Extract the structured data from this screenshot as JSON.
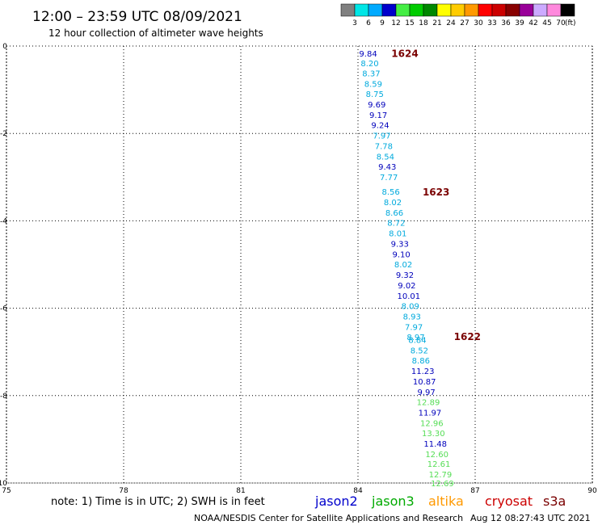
{
  "title": "12:00 – 23:59 UTC 08/09/2021",
  "subtitle": "12 hour collection of altimeter wave heights",
  "note": "note: 1) Time is in UTC; 2) SWH is in feet",
  "footer_left": "NOAA/NESDIS Center for Satellite Applications and Research",
  "footer_right": "Aug 12 08:27:43 UTC 2021",
  "satellites": [
    {
      "name": "jason2",
      "color": "#0000cc"
    },
    {
      "name": "jason3",
      "color": "#00aa00"
    },
    {
      "name": "altika",
      "color": "#ff9900"
    },
    {
      "name": "cryosat",
      "color": "#cc0000"
    },
    {
      "name": "s3a",
      "color": "#7a0000"
    }
  ],
  "color_scale": {
    "labels": [
      "3",
      "6",
      "9",
      "12",
      "15",
      "18",
      "21",
      "24",
      "27",
      "30",
      "33",
      "36",
      "39",
      "42",
      "45",
      "70"
    ],
    "unit": "(ft)",
    "colors": [
      "#808080",
      "#00e6e6",
      "#00aaff",
      "#0000cc",
      "#44ee44",
      "#00cc00",
      "#008800",
      "#ffff00",
      "#ffcc00",
      "#ff9900",
      "#ff0000",
      "#cc0000",
      "#880000",
      "#990099",
      "#ccaaff",
      "#ff88dd",
      "#000000"
    ]
  },
  "chart_data": {
    "type": "scatter",
    "xlim": [
      75,
      90
    ],
    "ylim": [
      -10,
      0
    ],
    "x_ticks": [
      "75",
      "78",
      "81",
      "84",
      "87",
      "90"
    ],
    "y_ticks": [
      "0",
      "-2",
      "-4",
      "-6",
      "-8",
      "-10"
    ],
    "grid": true,
    "track_colors": {
      "cyan": "#00aadd",
      "blue": "#0000bb",
      "green": "#55dd55"
    },
    "time_labels": [
      {
        "text": "1624",
        "lon": 85.2,
        "lat": -0.18
      },
      {
        "text": "1623",
        "lon": 86.0,
        "lat": -3.35
      },
      {
        "text": "1622",
        "lon": 86.8,
        "lat": -6.65
      }
    ],
    "points": [
      {
        "value": "9.84",
        "lon": 84.26,
        "lat": -0.17,
        "color": "blue"
      },
      {
        "value": "8.20",
        "lon": 84.3,
        "lat": -0.39,
        "color": "cyan"
      },
      {
        "value": "8.37",
        "lon": 84.34,
        "lat": -0.62,
        "color": "cyan"
      },
      {
        "value": "8.59",
        "lon": 84.39,
        "lat": -0.86,
        "color": "cyan"
      },
      {
        "value": "8.75",
        "lon": 84.43,
        "lat": -1.09,
        "color": "cyan"
      },
      {
        "value": "9.69",
        "lon": 84.48,
        "lat": -1.33,
        "color": "blue"
      },
      {
        "value": "9.17",
        "lon": 84.52,
        "lat": -1.57,
        "color": "blue"
      },
      {
        "value": "9.24",
        "lon": 84.57,
        "lat": -1.8,
        "color": "blue"
      },
      {
        "value": "7.97",
        "lon": 84.61,
        "lat": -2.04,
        "color": "cyan"
      },
      {
        "value": "7.78",
        "lon": 84.66,
        "lat": -2.28,
        "color": "cyan"
      },
      {
        "value": "8.54",
        "lon": 84.7,
        "lat": -2.52,
        "color": "cyan"
      },
      {
        "value": "9.43",
        "lon": 84.75,
        "lat": -2.75,
        "color": "blue"
      },
      {
        "value": "7.77",
        "lon": 84.79,
        "lat": -2.99,
        "color": "cyan"
      },
      {
        "value": "8.56",
        "lon": 84.84,
        "lat": -3.33,
        "color": "cyan"
      },
      {
        "value": "8.02",
        "lon": 84.89,
        "lat": -3.57,
        "color": "cyan"
      },
      {
        "value": "8.66",
        "lon": 84.93,
        "lat": -3.81,
        "color": "cyan"
      },
      {
        "value": "8.72",
        "lon": 84.98,
        "lat": -4.04,
        "color": "cyan"
      },
      {
        "value": "8.01",
        "lon": 85.02,
        "lat": -4.28,
        "color": "cyan"
      },
      {
        "value": "9.33",
        "lon": 85.07,
        "lat": -4.52,
        "color": "blue"
      },
      {
        "value": "9.10",
        "lon": 85.11,
        "lat": -4.76,
        "color": "blue"
      },
      {
        "value": "8.02",
        "lon": 85.16,
        "lat": -4.99,
        "color": "cyan"
      },
      {
        "value": "9.32",
        "lon": 85.2,
        "lat": -5.23,
        "color": "blue"
      },
      {
        "value": "9.02",
        "lon": 85.25,
        "lat": -5.47,
        "color": "blue"
      },
      {
        "value": "10.01",
        "lon": 85.3,
        "lat": -5.71,
        "color": "blue"
      },
      {
        "value": "8.09",
        "lon": 85.34,
        "lat": -5.94,
        "color": "cyan"
      },
      {
        "value": "8.93",
        "lon": 85.38,
        "lat": -6.18,
        "color": "cyan"
      },
      {
        "value": "7.97",
        "lon": 85.43,
        "lat": -6.42,
        "color": "cyan"
      },
      {
        "value": "8.97",
        "lon": 85.48,
        "lat": -6.65,
        "color": "cyan"
      },
      {
        "value": "8.84",
        "lon": 85.52,
        "lat": -6.72,
        "color": "cyan"
      },
      {
        "value": "8.52",
        "lon": 85.57,
        "lat": -6.96,
        "color": "cyan"
      },
      {
        "value": "8.86",
        "lon": 85.61,
        "lat": -7.19,
        "color": "cyan"
      },
      {
        "value": "11.23",
        "lon": 85.66,
        "lat": -7.43,
        "color": "blue"
      },
      {
        "value": "10.87",
        "lon": 85.7,
        "lat": -7.67,
        "color": "blue"
      },
      {
        "value": "9.97",
        "lon": 85.75,
        "lat": -7.91,
        "color": "blue"
      },
      {
        "value": "12.89",
        "lon": 85.8,
        "lat": -8.14,
        "color": "green"
      },
      {
        "value": "11.97",
        "lon": 85.84,
        "lat": -8.38,
        "color": "blue"
      },
      {
        "value": "12.96",
        "lon": 85.89,
        "lat": -8.62,
        "color": "green"
      },
      {
        "value": "13.30",
        "lon": 85.93,
        "lat": -8.85,
        "color": "green"
      },
      {
        "value": "11.48",
        "lon": 85.98,
        "lat": -9.09,
        "color": "blue"
      },
      {
        "value": "12.60",
        "lon": 86.02,
        "lat": -9.33,
        "color": "green"
      },
      {
        "value": "12.61",
        "lon": 86.07,
        "lat": -9.56,
        "color": "green"
      },
      {
        "value": "12.79",
        "lon": 86.11,
        "lat": -9.8,
        "color": "green"
      },
      {
        "value": "12.69",
        "lon": 86.16,
        "lat": -10.0,
        "color": "green"
      }
    ]
  }
}
